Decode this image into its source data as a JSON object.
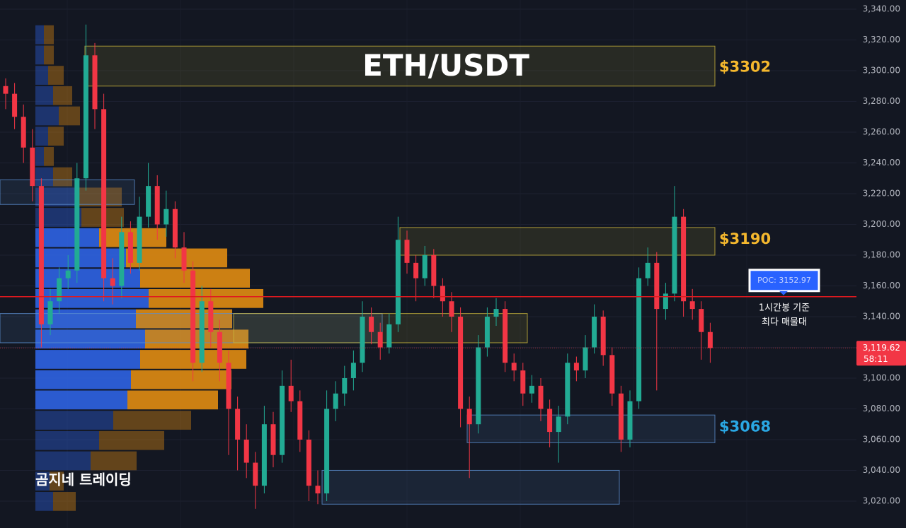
{
  "chart_data": {
    "type": "candlestick",
    "title": "ETH/USDT",
    "watermark": "곰지네 트레이딩",
    "ylim": [
      3002.5,
      3346
    ],
    "yticks": [
      {
        "value": 3020,
        "label": "3,020.00"
      },
      {
        "value": 3040,
        "label": "3,040.00"
      },
      {
        "value": 3060,
        "label": "3,060.00"
      },
      {
        "value": 3080,
        "label": "3,080.00"
      },
      {
        "value": 3100,
        "label": "3,100.00"
      },
      {
        "value": 3120,
        "label": "3,120.00"
      },
      {
        "value": 3140,
        "label": "3,140.00"
      },
      {
        "value": 3160,
        "label": "3,160.00"
      },
      {
        "value": 3180,
        "label": "3,180.00"
      },
      {
        "value": 3200,
        "label": "3,200.00"
      },
      {
        "value": 3220,
        "label": "3,220.00"
      },
      {
        "value": 3240,
        "label": "3,240.00"
      },
      {
        "value": 3260,
        "label": "3,260.00"
      },
      {
        "value": 3280,
        "label": "3,280.00"
      },
      {
        "value": 3300,
        "label": "3,300.00"
      },
      {
        "value": 3320,
        "label": "3,320.00"
      },
      {
        "value": 3340,
        "label": "3,340.00"
      }
    ],
    "grid": true,
    "up_color": "#22ab94",
    "down_color": "#f23645",
    "ohlc": [
      [
        3290,
        3295,
        3275,
        3285
      ],
      [
        3285,
        3292,
        3262,
        3270
      ],
      [
        3270,
        3278,
        3240,
        3250
      ],
      [
        3250,
        3262,
        3215,
        3225
      ],
      [
        3225,
        3230,
        3120,
        3135
      ],
      [
        3135,
        3158,
        3128,
        3150
      ],
      [
        3150,
        3172,
        3142,
        3165
      ],
      [
        3165,
        3180,
        3158,
        3170
      ],
      [
        3170,
        3240,
        3162,
        3230
      ],
      [
        3230,
        3330,
        3222,
        3310
      ],
      [
        3310,
        3318,
        3262,
        3275
      ],
      [
        3275,
        3285,
        3150,
        3165
      ],
      [
        3165,
        3178,
        3148,
        3160
      ],
      [
        3160,
        3205,
        3152,
        3195
      ],
      [
        3195,
        3202,
        3168,
        3175
      ],
      [
        3175,
        3218,
        3170,
        3205
      ],
      [
        3205,
        3240,
        3198,
        3225
      ],
      [
        3225,
        3232,
        3190,
        3200
      ],
      [
        3200,
        3222,
        3192,
        3210
      ],
      [
        3210,
        3215,
        3178,
        3185
      ],
      [
        3185,
        3195,
        3162,
        3170
      ],
      [
        3170,
        3176,
        3098,
        3110
      ],
      [
        3110,
        3160,
        3104,
        3150
      ],
      [
        3150,
        3158,
        3120,
        3130
      ],
      [
        3130,
        3138,
        3098,
        3110
      ],
      [
        3110,
        3118,
        3050,
        3080
      ],
      [
        3080,
        3088,
        3040,
        3060
      ],
      [
        3060,
        3070,
        3035,
        3045
      ],
      [
        3045,
        3052,
        3015,
        3030
      ],
      [
        3030,
        3082,
        3025,
        3070
      ],
      [
        3070,
        3078,
        3042,
        3050
      ],
      [
        3050,
        3105,
        3045,
        3095
      ],
      [
        3095,
        3112,
        3078,
        3085
      ],
      [
        3085,
        3092,
        3052,
        3060
      ],
      [
        3060,
        3066,
        3020,
        3030
      ],
      [
        3030,
        3040,
        3018,
        3025
      ],
      [
        3025,
        3092,
        3020,
        3080
      ],
      [
        3080,
        3098,
        3072,
        3090
      ],
      [
        3090,
        3108,
        3082,
        3100
      ],
      [
        3100,
        3118,
        3092,
        3110
      ],
      [
        3110,
        3150,
        3104,
        3140
      ],
      [
        3140,
        3146,
        3122,
        3130
      ],
      [
        3130,
        3136,
        3112,
        3120
      ],
      [
        3120,
        3142,
        3116,
        3135
      ],
      [
        3135,
        3205,
        3130,
        3190
      ],
      [
        3190,
        3196,
        3168,
        3175
      ],
      [
        3175,
        3180,
        3150,
        3165
      ],
      [
        3165,
        3186,
        3160,
        3180
      ],
      [
        3180,
        3184,
        3152,
        3160
      ],
      [
        3160,
        3165,
        3140,
        3150
      ],
      [
        3150,
        3156,
        3130,
        3140
      ],
      [
        3140,
        3146,
        3068,
        3080
      ],
      [
        3080,
        3088,
        3035,
        3070
      ],
      [
        3070,
        3128,
        3064,
        3120
      ],
      [
        3120,
        3146,
        3114,
        3140
      ],
      [
        3140,
        3152,
        3134,
        3145
      ],
      [
        3145,
        3150,
        3104,
        3110
      ],
      [
        3110,
        3116,
        3098,
        3105
      ],
      [
        3105,
        3110,
        3082,
        3090
      ],
      [
        3090,
        3102,
        3084,
        3095
      ],
      [
        3095,
        3100,
        3072,
        3080
      ],
      [
        3080,
        3086,
        3055,
        3065
      ],
      [
        3065,
        3082,
        3045,
        3075
      ],
      [
        3075,
        3116,
        3070,
        3110
      ],
      [
        3110,
        3114,
        3098,
        3105
      ],
      [
        3105,
        3128,
        3100,
        3120
      ],
      [
        3120,
        3148,
        3116,
        3140
      ],
      [
        3140,
        3144,
        3108,
        3115
      ],
      [
        3115,
        3120,
        3082,
        3090
      ],
      [
        3090,
        3095,
        3052,
        3060
      ],
      [
        3060,
        3092,
        3055,
        3085
      ],
      [
        3085,
        3172,
        3080,
        3165
      ],
      [
        3165,
        3185,
        3160,
        3175
      ],
      [
        3175,
        3182,
        3092,
        3145
      ],
      [
        3145,
        3162,
        3138,
        3155
      ],
      [
        3155,
        3225,
        3150,
        3205
      ],
      [
        3205,
        3210,
        3140,
        3150
      ],
      [
        3150,
        3158,
        3138,
        3145
      ],
      [
        3145,
        3150,
        3112,
        3130
      ],
      [
        3130,
        3136,
        3110,
        3119.62
      ]
    ],
    "volume_profile": {
      "bins": [
        3330,
        3316.8,
        3303.6,
        3290.4,
        3277.2,
        3264.0,
        3250.8,
        3237.6,
        3224.4,
        3211.2,
        3198.0,
        3184.8,
        3171.6,
        3158.4,
        3145.2,
        3132.0,
        3118.8,
        3105.6,
        3092.4,
        3079.2,
        3066.0,
        3052.8,
        3039.6,
        3026.4,
        3013.2
      ],
      "buy": [
        12,
        12,
        18,
        25,
        33,
        18,
        12,
        25,
        62,
        65,
        90,
        128,
        148,
        160,
        142,
        155,
        148,
        135,
        130,
        110,
        90,
        78,
        20,
        25
      ],
      "sell": [
        14,
        14,
        22,
        27,
        30,
        22,
        14,
        27,
        60,
        60,
        95,
        143,
        155,
        162,
        136,
        146,
        150,
        142,
        128,
        110,
        92,
        65,
        20,
        32
      ],
      "buy_color": "#2e62e0",
      "sell_color": "#dc8a12",
      "value_area": {
        "low": 3079.2,
        "high": 3198.0
      }
    },
    "zones": [
      {
        "low": 3290,
        "high": 3316,
        "color": "#c9b43b",
        "label": {
          "value": 3302,
          "label": "$3302"
        },
        "label_color": "#f5b82e"
      },
      {
        "low": 3180,
        "high": 3198,
        "color": "#c9b43b",
        "label": {
          "value": 3190,
          "label": "$3190"
        },
        "label_color": "#f5b82e"
      },
      {
        "low": 3058,
        "high": 3076,
        "color": "#5b8fd0",
        "label": {
          "value": 3068,
          "label": "$3068"
        },
        "label_color": "#2aa7e3"
      },
      {
        "low": 3018,
        "high": 3040,
        "color": "#5b8fd0"
      },
      {
        "low": 3123,
        "high": 3142,
        "color": "#5b8fd0"
      },
      {
        "low": 3123,
        "high": 3142,
        "color": "#c9b43b"
      },
      {
        "low": 3213,
        "high": 3229,
        "color": "#5b8fd0"
      }
    ],
    "poc": {
      "value": 3152.97,
      "label": "POC: 3152.97"
    },
    "poc_color": "#e0191f",
    "annotation": [
      "1시간봉 기준",
      "최다 매물대"
    ],
    "last_price": {
      "value": 3119.62,
      "label": "3,119.62"
    },
    "countdown": "58:11"
  }
}
